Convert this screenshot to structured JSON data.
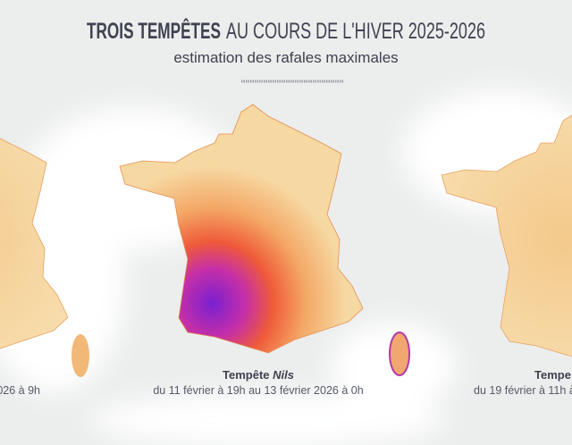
{
  "header": {
    "title_bold": "TROIS TEMPÊTES",
    "title_rest": "AU COURS DE L'HIVER 2025-2026",
    "subtitle": "estimation des rafales maximales"
  },
  "maps": [
    {
      "caption_date": "026 à 9h"
    },
    {
      "caption_prefix": "Tempête",
      "caption_name": "Nils",
      "caption_date": "du 11 février à 19h au 13 février 2026 à 0h"
    },
    {
      "caption_prefix": "Tempe",
      "caption_date": "du 19 février à 11h à"
    }
  ]
}
